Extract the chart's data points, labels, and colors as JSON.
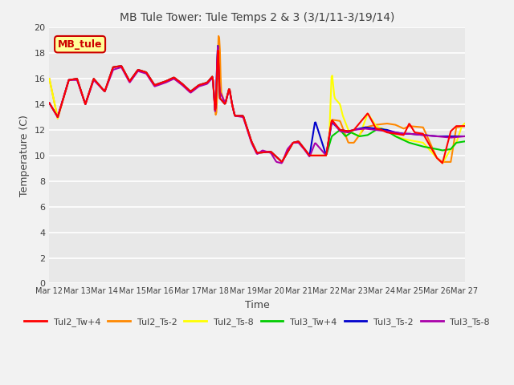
{
  "title": "MB Tule Tower: Tule Temps 2 & 3 (3/1/11-3/19/14)",
  "xlabel": "Time",
  "ylabel": "Temperature (C)",
  "ylim": [
    0,
    20
  ],
  "yticks": [
    0,
    2,
    4,
    6,
    8,
    10,
    12,
    14,
    16,
    18,
    20
  ],
  "xtick_labels": [
    "Mar 12",
    "Mar 13",
    "Mar 14",
    "Mar 15",
    "Mar 16",
    "Mar 17",
    "Mar 18",
    "Mar 19",
    "Mar 20",
    "Mar 21",
    "Mar 22",
    "Mar 23",
    "Mar 24",
    "Mar 25",
    "Mar 26",
    "Mar 27"
  ],
  "fig_bg": "#f2f2f2",
  "axes_bg": "#e8e8e8",
  "grid_color": "#ffffff",
  "series_colors": {
    "Tul2_Tw+4": "#ff0000",
    "Tul2_Ts-2": "#ff8800",
    "Tul2_Ts-8": "#ffff00",
    "Tul3_Tw+4": "#00cc00",
    "Tul3_Ts-2": "#0000cc",
    "Tul3_Ts-8": "#aa00aa"
  },
  "annotation": {
    "text": "MB_tule",
    "facecolor": "#ffff99",
    "edgecolor": "#cc0000",
    "textcolor": "#cc0000"
  },
  "title_color": "#404040",
  "label_color": "#404040",
  "tick_color": "#404040",
  "linewidth": 1.5
}
